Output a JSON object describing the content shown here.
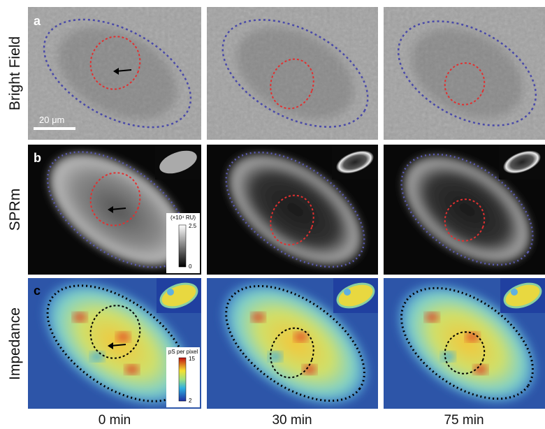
{
  "rows": [
    {
      "label": "Bright Field",
      "panel": "a"
    },
    {
      "label": "SPRm",
      "panel": "b"
    },
    {
      "label": "Impedance",
      "panel": "c"
    }
  ],
  "columns": [
    "0 min",
    "30 min",
    "75 min"
  ],
  "scale_bar": "20 μm",
  "sprm_colorbar": {
    "unit": "(×10⁴ RU)",
    "max": 2.5,
    "min": 0
  },
  "impedance_colorbar": {
    "unit": "pS per pixel",
    "max": 15,
    "min": 2
  }
}
